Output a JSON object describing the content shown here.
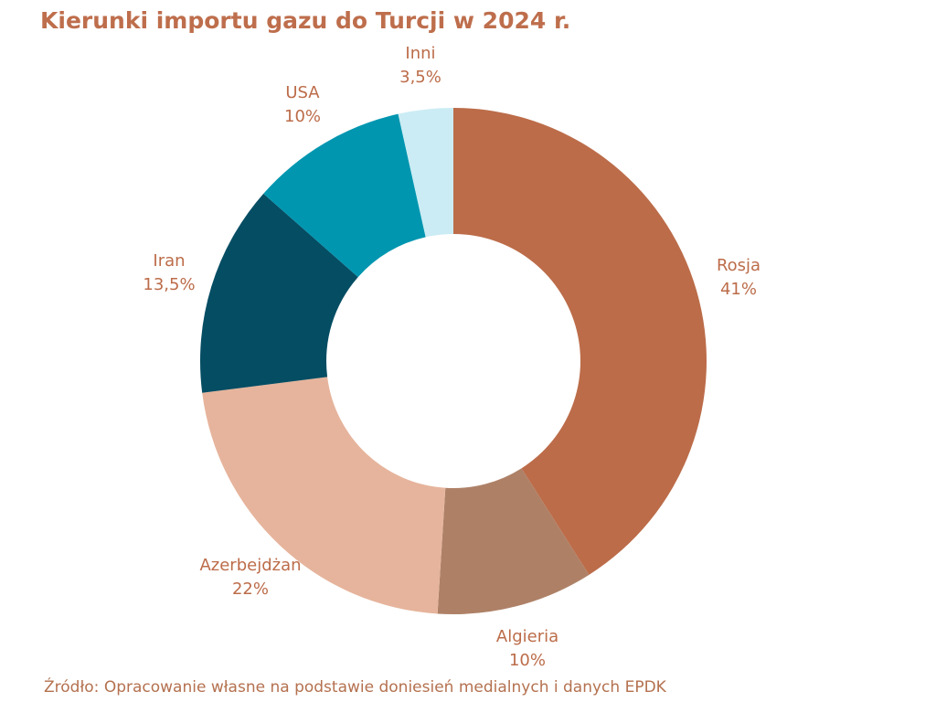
{
  "chart_data": {
    "type": "pie",
    "subtype": "donut",
    "title": "Kierunki importu gazu do Turcji w 2024 r.",
    "categories": [
      "Rosja",
      "Algieria",
      "Azerbejdżan",
      "Iran",
      "USA",
      "Inni"
    ],
    "values": [
      41,
      10,
      22,
      13.5,
      10,
      3.5
    ],
    "value_labels": [
      "41%",
      "10%",
      "22%",
      "13,5%",
      "10%",
      "3,5%"
    ],
    "colors": [
      "#BC6C49",
      "#AE8167",
      "#E6B49C",
      "#054D63",
      "#0096B0",
      "#CBECF4"
    ],
    "start_angle_deg": 0,
    "direction": "clockwise",
    "donut_hole_ratio": 0.5,
    "legend_position": "none",
    "labels_outside": true,
    "title_color": "#BE6E4C",
    "label_color": "#BC6C49",
    "source_color": "#B4714F",
    "background_color": "#FFFFFF",
    "source": "Źródło: Opracowanie własne na podstawie doniesień medialnych i danych EPDK"
  }
}
